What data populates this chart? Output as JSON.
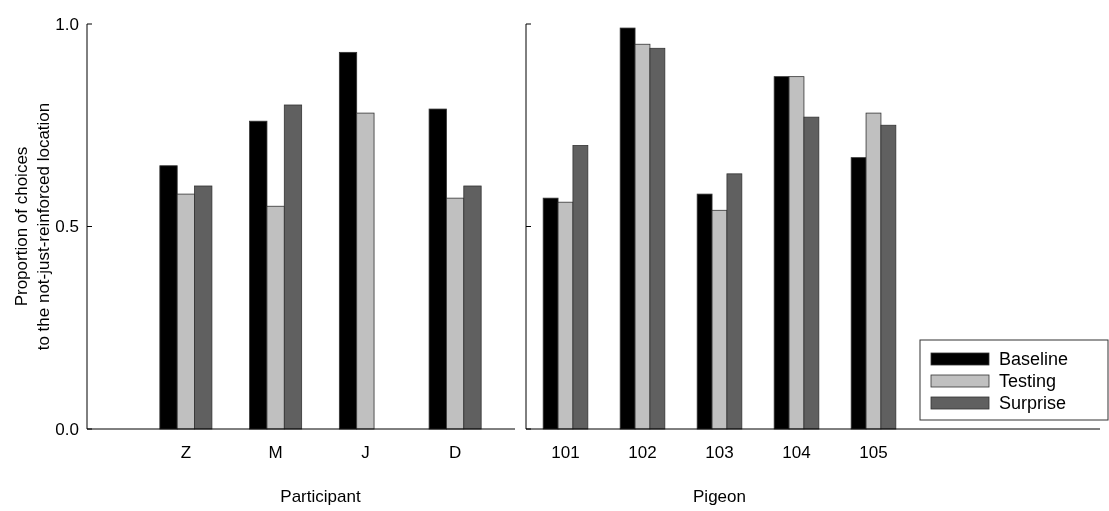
{
  "chart_data": [
    {
      "type": "bar",
      "xlabel": "Participant",
      "ylabel": "Proportion of choices\nto the not-just-reinforced location",
      "categories": [
        "Z",
        "M",
        "J",
        "D"
      ],
      "ylim": [
        0,
        1
      ],
      "yticks": [
        {
          "value": 0,
          "label": "0.0"
        },
        {
          "value": 0.5,
          "label": "0.5"
        },
        {
          "value": 1,
          "label": "1.0"
        }
      ],
      "legend": false,
      "series": [
        {
          "color": "#000000",
          "values": [
            0.65,
            0.76,
            0.93,
            0.79
          ]
        },
        {
          "color": "#c0c0c0",
          "values": [
            0.58,
            0.55,
            0.78,
            0.57
          ]
        },
        {
          "color": "#606060",
          "values": [
            0.6,
            0.8,
            null,
            0.6
          ]
        }
      ]
    },
    {
      "type": "bar",
      "xlabel": "Pigeon",
      "categories": [
        "101",
        "102",
        "103",
        "104",
        "105"
      ],
      "ylim": [
        0,
        1
      ],
      "yticks": [
        {
          "value": 0,
          "label": null
        },
        {
          "value": 0.5,
          "label": null
        },
        {
          "value": 1,
          "label": null
        }
      ],
      "tick_labels": "x",
      "legend": "bottom right",
      "series": [
        {
          "name": "Baseline",
          "color": "#000000",
          "values": [
            0.57,
            0.99,
            0.58,
            0.87,
            0.67
          ]
        },
        {
          "name": "Testing",
          "color": "#c0c0c0",
          "values": [
            0.56,
            0.95,
            0.54,
            0.87,
            0.78
          ]
        },
        {
          "name": "Surprise",
          "color": "#606060",
          "values": [
            0.7,
            0.94,
            0.63,
            0.77,
            0.75
          ]
        }
      ]
    }
  ]
}
